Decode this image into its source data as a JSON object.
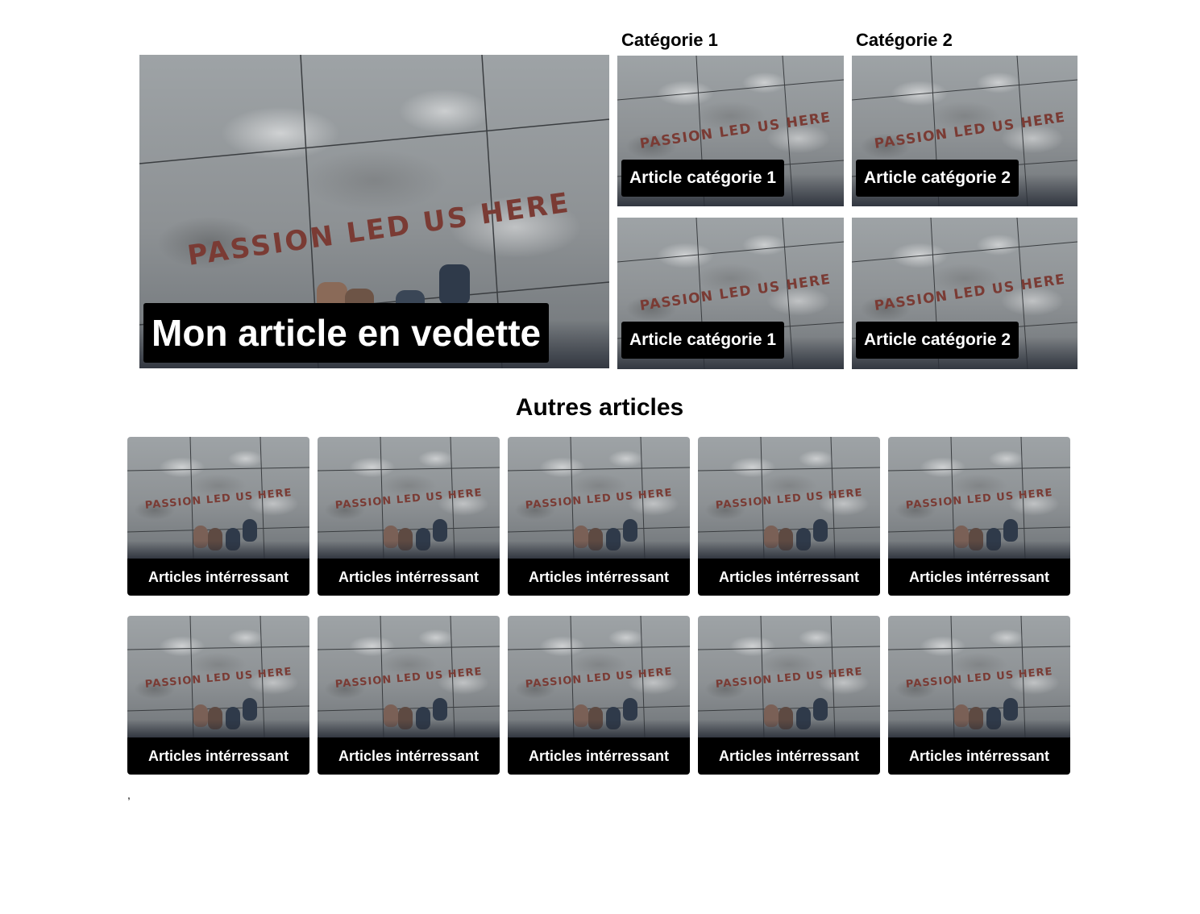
{
  "featured": {
    "title": "Mon article en vedette",
    "image_text": "PASSION LED US HERE"
  },
  "categories": [
    {
      "heading": "Catégorie 1",
      "articles": [
        "Article catégorie 1",
        "Article catégorie 1"
      ]
    },
    {
      "heading": "Catégorie 2",
      "articles": [
        "Article catégorie 2",
        "Article catégorie 2"
      ]
    }
  ],
  "others": {
    "heading": "Autres articles",
    "cards": [
      "Articles intérressant",
      "Articles intérressant",
      "Articles intérressant",
      "Articles intérressant",
      "Articles intérressant",
      "Articles intérressant",
      "Articles intérressant",
      "Articles intérressant",
      "Articles intérressant",
      "Articles intérressant"
    ]
  },
  "footer_text": ",",
  "colors": {
    "caption_bg": "#000000",
    "caption_text": "#ffffff",
    "paint": "#7a3b34"
  }
}
